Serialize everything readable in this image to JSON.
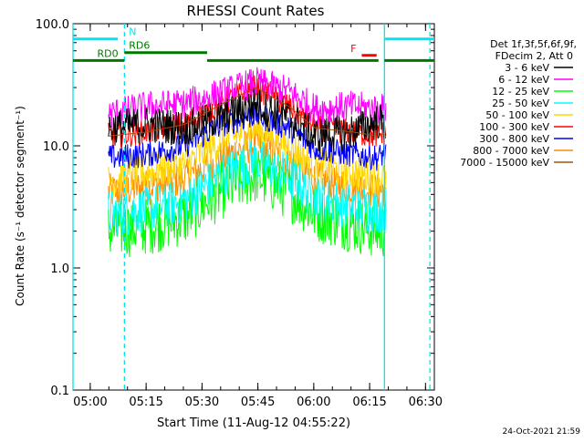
{
  "chart_data": {
    "type": "line",
    "title": "RHESSI Count Rates",
    "xlabel": "Start Time (11-Aug-12 04:55:22)",
    "ylabel": "Count Rate (s⁻¹ detector segment⁻¹)",
    "scale_y": "log",
    "x_start_min": 0,
    "x_end_min": 97,
    "xlim_min": [
      0,
      97
    ],
    "ylim": [
      0.1,
      100
    ],
    "x_ticks": [
      {
        "label": "05:00",
        "t": 4.63
      },
      {
        "label": "05:15",
        "t": 19.63
      },
      {
        "label": "05:30",
        "t": 34.63
      },
      {
        "label": "05:45",
        "t": 49.63
      },
      {
        "label": "06:00",
        "t": 64.63
      },
      {
        "label": "06:15",
        "t": 79.63
      },
      {
        "label": "06:30",
        "t": 94.63
      }
    ],
    "y_ticks": [
      {
        "label": "100.0",
        "v": 100
      },
      {
        "label": "10.0",
        "v": 10
      },
      {
        "label": "1.0",
        "v": 1
      },
      {
        "label": "0.1",
        "v": 0.1
      }
    ],
    "legend_header": [
      "Det 1f,3f,5f,6f,9f,",
      "FDecim 2, Att 0"
    ],
    "legend_position": "right",
    "series": [
      {
        "name": "3 - 6 keV",
        "color": "#000000",
        "knots": [
          [
            9.5,
            14
          ],
          [
            20,
            15
          ],
          [
            30,
            14
          ],
          [
            40,
            17
          ],
          [
            49,
            22
          ],
          [
            58,
            17
          ],
          [
            65,
            12
          ],
          [
            75,
            13
          ],
          [
            82,
            16
          ],
          [
            84,
            15
          ]
        ]
      },
      {
        "name": "6 - 12 keV",
        "color": "#ff00ff",
        "knots": [
          [
            9.5,
            18
          ],
          [
            20,
            21
          ],
          [
            30,
            22
          ],
          [
            40,
            27
          ],
          [
            49,
            33
          ],
          [
            58,
            28
          ],
          [
            65,
            20
          ],
          [
            75,
            21
          ],
          [
            82,
            20
          ],
          [
            84,
            20
          ]
        ]
      },
      {
        "name": "12 - 25 keV",
        "color": "#00ff00",
        "knots": [
          [
            9.5,
            2.0
          ],
          [
            20,
            2.2
          ],
          [
            30,
            2.6
          ],
          [
            40,
            4.3
          ],
          [
            49,
            5.8
          ],
          [
            58,
            4.2
          ],
          [
            65,
            2.8
          ],
          [
            75,
            2.3
          ],
          [
            82,
            2.0
          ],
          [
            84,
            2.1
          ]
        ]
      },
      {
        "name": "25 - 50 keV",
        "color": "#00ffff",
        "knots": [
          [
            9.5,
            2.8
          ],
          [
            20,
            3.0
          ],
          [
            30,
            3.6
          ],
          [
            40,
            5.8
          ],
          [
            49,
            7.5
          ],
          [
            58,
            5.6
          ],
          [
            65,
            3.8
          ],
          [
            75,
            3.2
          ],
          [
            82,
            3.0
          ],
          [
            84,
            3.1
          ]
        ]
      },
      {
        "name": "50 - 100 keV",
        "color": "#ffd700",
        "knots": [
          [
            9.5,
            5.2
          ],
          [
            20,
            6.0
          ],
          [
            30,
            7.0
          ],
          [
            40,
            11
          ],
          [
            49,
            14
          ],
          [
            58,
            10
          ],
          [
            65,
            7
          ],
          [
            75,
            6
          ],
          [
            82,
            5.5
          ],
          [
            84,
            5.5
          ]
        ]
      },
      {
        "name": "100 - 300 keV",
        "color": "#ff0000",
        "knots": [
          [
            9.5,
            12
          ],
          [
            20,
            13
          ],
          [
            30,
            15
          ],
          [
            40,
            22
          ],
          [
            49,
            30
          ],
          [
            58,
            21
          ],
          [
            65,
            14
          ],
          [
            75,
            13
          ],
          [
            82,
            12
          ],
          [
            84,
            13
          ]
        ]
      },
      {
        "name": "300 - 800 keV",
        "color": "#0000ff",
        "knots": [
          [
            9.5,
            8.0
          ],
          [
            20,
            8.5
          ],
          [
            30,
            10
          ],
          [
            40,
            15
          ],
          [
            49,
            18
          ],
          [
            58,
            14
          ],
          [
            65,
            9.5
          ],
          [
            75,
            8.5
          ],
          [
            82,
            8.0
          ],
          [
            84,
            9.0
          ]
        ]
      },
      {
        "name": "800 - 7000 keV",
        "color": "#ff8c00",
        "knots": [
          [
            9.5,
            4.2
          ],
          [
            20,
            4.6
          ],
          [
            30,
            5.4
          ],
          [
            40,
            8
          ],
          [
            49,
            10.5
          ],
          [
            58,
            7.6
          ],
          [
            65,
            5.3
          ],
          [
            75,
            4.6
          ],
          [
            82,
            4.2
          ],
          [
            84,
            4.5
          ]
        ]
      },
      {
        "name": "7000 - 15000 keV",
        "color": "#a0520c",
        "knots": [
          [
            9.5,
            12
          ],
          [
            20,
            13
          ],
          [
            30,
            15
          ],
          [
            40,
            22
          ],
          [
            49,
            30
          ],
          [
            58,
            21
          ],
          [
            65,
            14
          ],
          [
            75,
            13
          ],
          [
            82,
            12
          ],
          [
            84,
            13
          ]
        ]
      }
    ],
    "vertical_lines": [
      {
        "t": 0,
        "color": "#00e5ee",
        "style": "solid"
      },
      {
        "t": 13.8,
        "color": "#00e5ee",
        "style": "dashed"
      },
      {
        "t": 83.6,
        "color": "#00e5ee",
        "style": "solid"
      },
      {
        "t": 95.8,
        "color": "#00e5ee",
        "style": "dashed"
      }
    ],
    "flag_bars": [
      {
        "label": "N",
        "color": "#00e5ee",
        "level": 75,
        "segments": [
          [
            0,
            12
          ],
          [
            83.6,
            97
          ]
        ],
        "label_t": 15
      },
      {
        "label": "F",
        "color": "#ff0000",
        "level": 55,
        "segments": [
          [
            77.5,
            81.5
          ]
        ],
        "label_t": 74.5
      },
      {
        "label": "RD0",
        "color": "#007800",
        "level": 50,
        "segments": [
          [
            0,
            13.8
          ],
          [
            36,
            61
          ],
          [
            61,
            82
          ],
          [
            83.6,
            97
          ]
        ],
        "label_t": 6.5
      },
      {
        "label": "RD6",
        "color": "#007800",
        "level": 58,
        "segments": [
          [
            13.8,
            36
          ]
        ],
        "label_t": 15
      }
    ],
    "corner_timestamp": "24-Oct-2021 21:59"
  }
}
